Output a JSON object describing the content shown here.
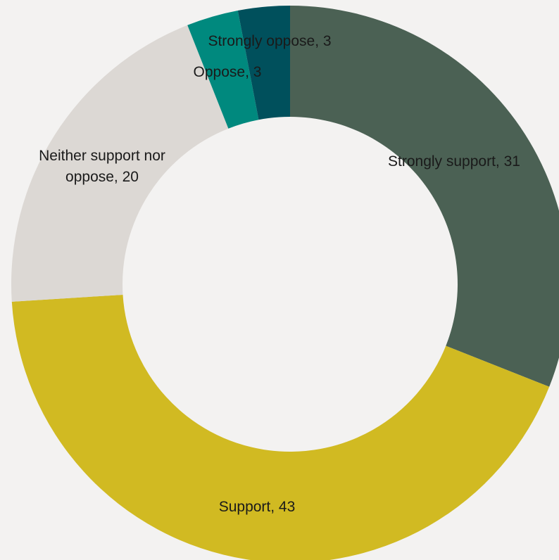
{
  "chart_data": {
    "type": "pie",
    "title": "",
    "legend": "none",
    "slices": [
      {
        "label": "Strongly support, 31",
        "lines": [
          "Strongly support, 31"
        ],
        "value": 31,
        "color": "#4b6154"
      },
      {
        "label": "Support, 43",
        "lines": [
          "Support, 43"
        ],
        "value": 43,
        "color": "#d1ba22"
      },
      {
        "label": "Neither support nor oppose, 20",
        "lines": [
          "Neither support nor",
          "oppose, 20"
        ],
        "value": 20,
        "color": "#dcd8d4"
      },
      {
        "label": "Oppose, 3",
        "lines": [
          "Oppose, 3"
        ],
        "value": 3,
        "color": "#00897e"
      },
      {
        "label": "Strongly oppose, 3",
        "lines": [
          "Strongly oppose, 3"
        ],
        "value": 3,
        "color": "#00505c"
      }
    ]
  }
}
